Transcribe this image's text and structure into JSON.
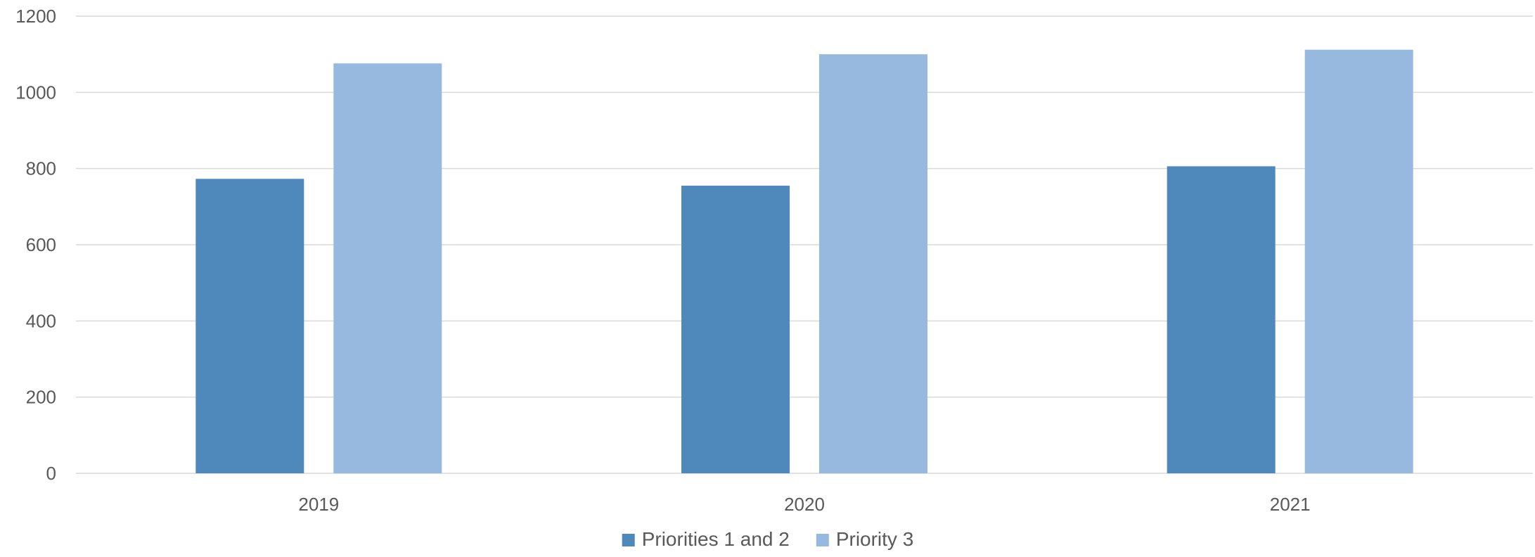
{
  "chart_data": {
    "type": "bar",
    "title": "",
    "xlabel": "",
    "ylabel": "",
    "categories": [
      "2019",
      "2020",
      "2021"
    ],
    "series": [
      {
        "name": "Priorities 1 and 2",
        "color": "#4f88bb",
        "values": [
          773,
          755,
          806
        ]
      },
      {
        "name": "Priority 3",
        "color": "#98b9df",
        "values": [
          1076,
          1100,
          1112
        ]
      }
    ],
    "ylim": [
      0,
      1200
    ],
    "yticks": [
      "0",
      "200",
      "400",
      "600",
      "800",
      "1000",
      "1200"
    ],
    "grid": true,
    "gridline_color": "#d9d9d9",
    "legend_position": "bottom"
  }
}
